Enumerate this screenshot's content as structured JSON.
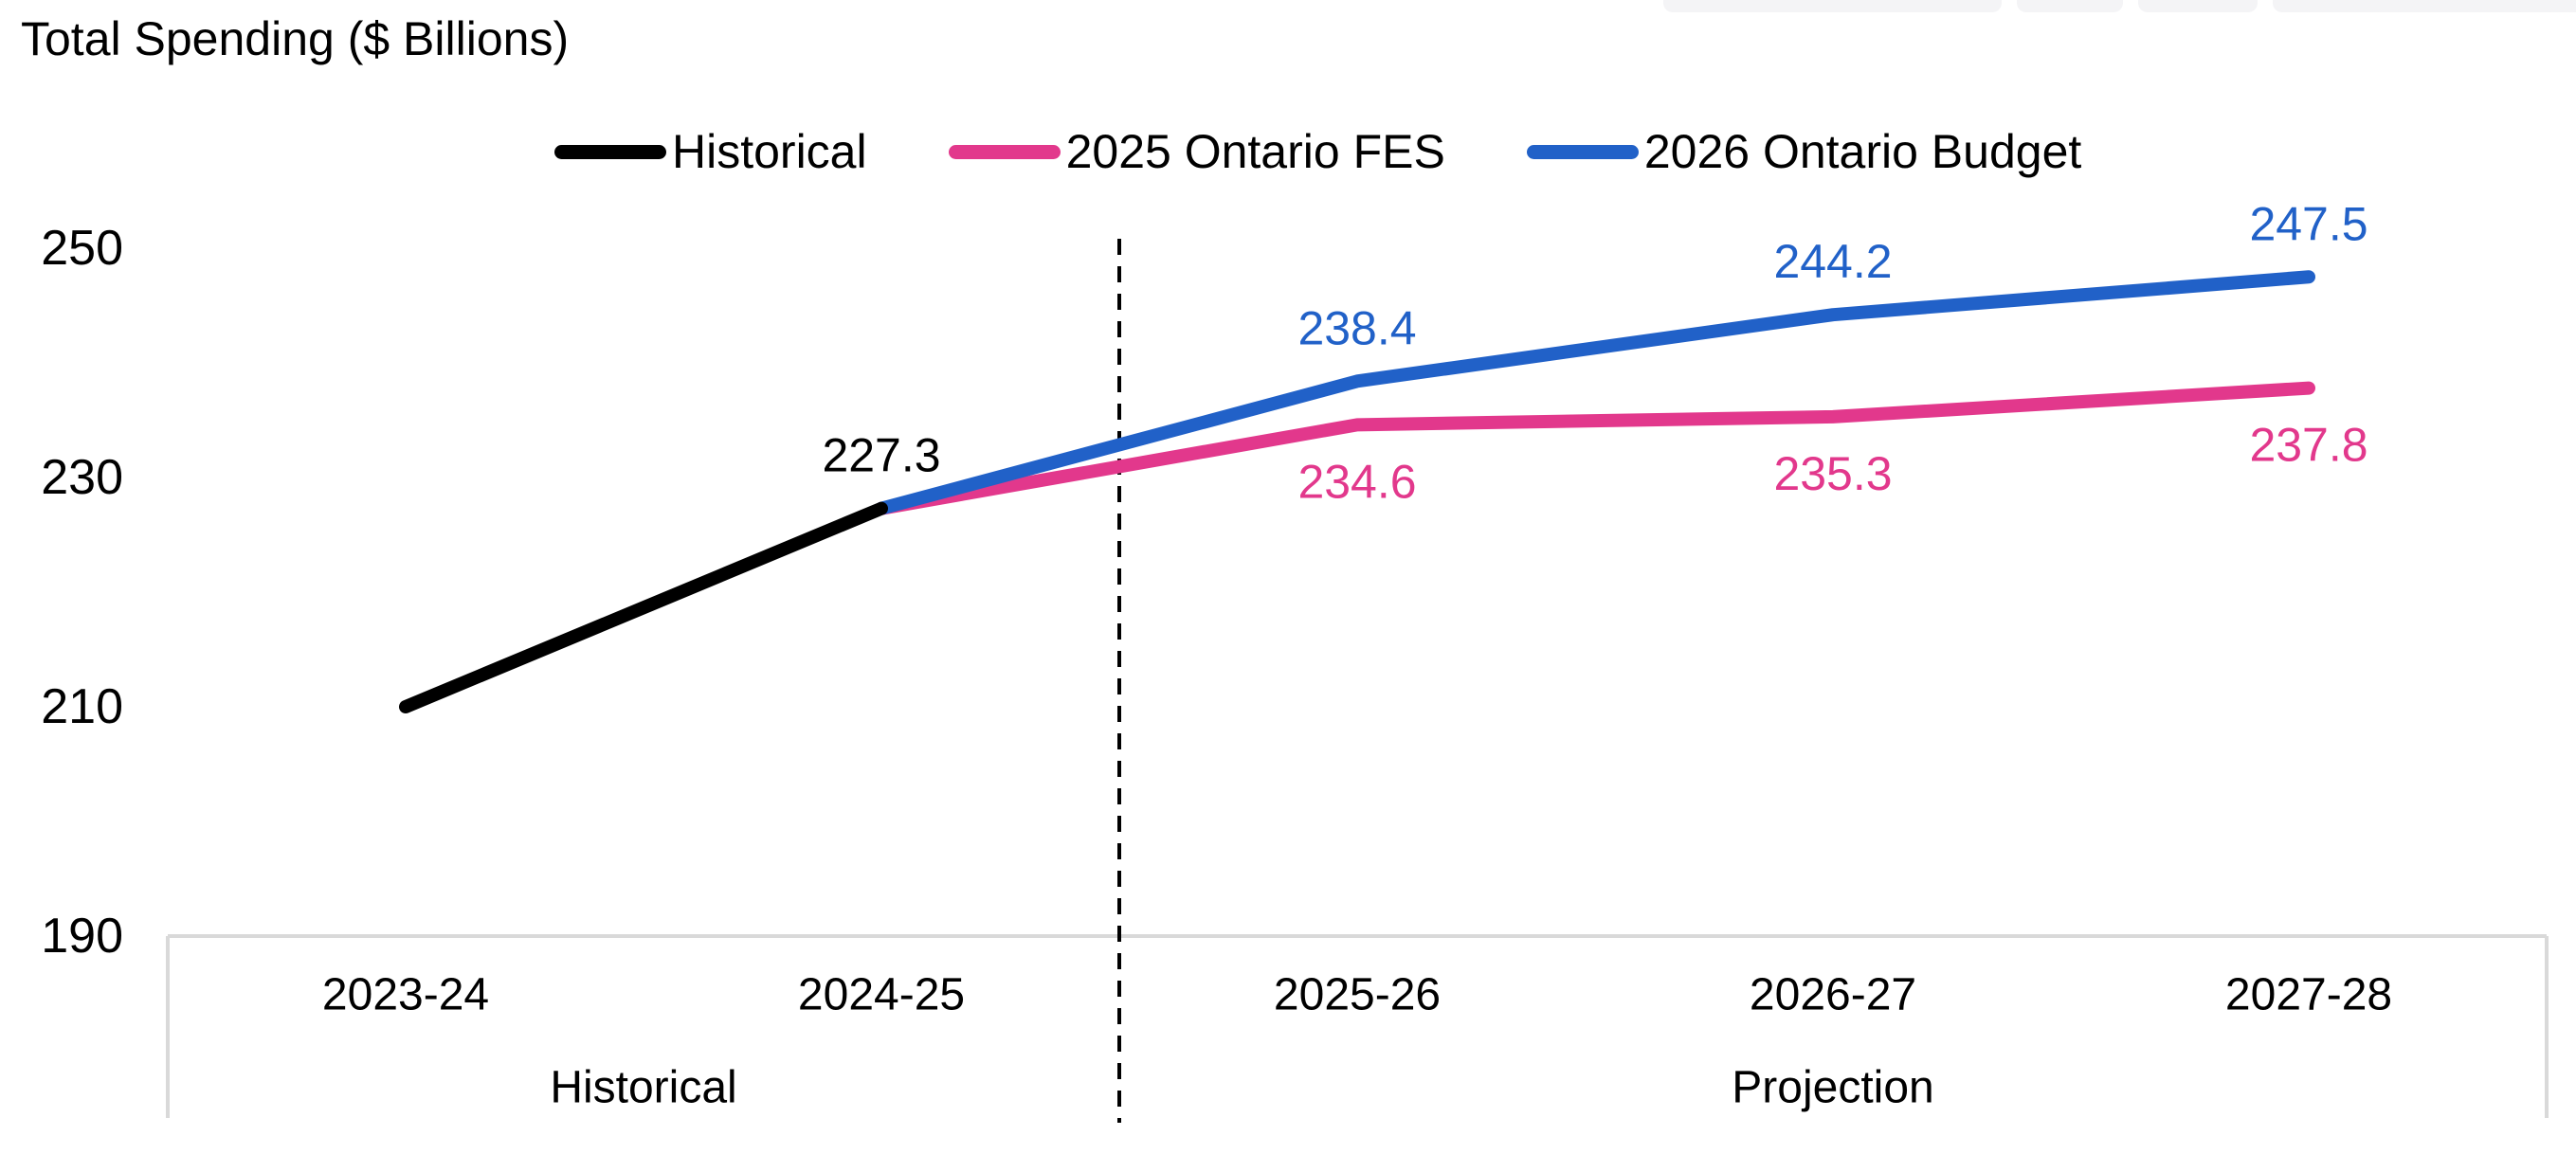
{
  "title": "Total Spending ($ Billions)",
  "chart_data": {
    "type": "line",
    "title": "Total Spending ($ Billions)",
    "categories": [
      "2023-24",
      "2024-25",
      "2025-26",
      "2026-27",
      "2027-28"
    ],
    "category_groups": [
      {
        "label": "Historical",
        "span": [
          "2023-24",
          "2024-25"
        ]
      },
      {
        "label": "Projection",
        "span": [
          "2025-26",
          "2026-27",
          "2027-28"
        ]
      }
    ],
    "y_ticks": [
      250,
      230,
      210,
      190
    ],
    "ylim": [
      190,
      252
    ],
    "grid": "off",
    "legend_position": "top",
    "divider": {
      "style": "dashed",
      "color": "#000000",
      "position": "between 2024-25 and 2025-26"
    },
    "axis_color": "#d9d9d9",
    "series": [
      {
        "name": "Historical",
        "color": "#000000",
        "label_side": "above",
        "values": {
          "2023-24": 210.0,
          "2024-25": 227.3
        },
        "data_labels": {
          "2024-25": "227.3"
        }
      },
      {
        "name": "2025 Ontario FES",
        "color": "#e2388c",
        "label_side": "below",
        "values": {
          "2024-25": 227.3,
          "2025-26": 234.6,
          "2026-27": 235.3,
          "2027-28": 237.8
        },
        "data_labels": {
          "2025-26": "234.6",
          "2026-27": "235.3",
          "2027-28": "237.8"
        }
      },
      {
        "name": "2026 Ontario Budget",
        "color": "#2161c8",
        "label_side": "above",
        "values": {
          "2024-25": 227.3,
          "2025-26": 238.4,
          "2026-27": 244.2,
          "2027-28": 247.5
        },
        "data_labels": {
          "2025-26": "238.4",
          "2026-27": "244.2",
          "2027-28": "247.5"
        }
      }
    ]
  }
}
